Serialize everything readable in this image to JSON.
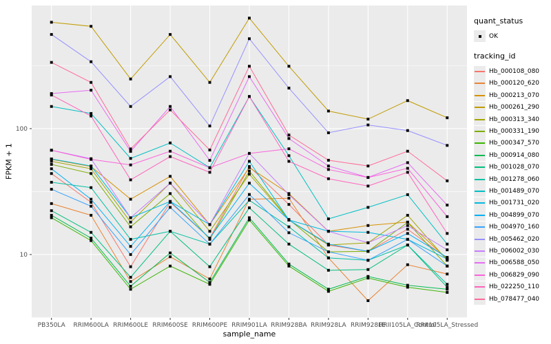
{
  "legend": {
    "quant_status_title": "quant_status",
    "quant_status_items": [
      "OK"
    ],
    "tracking_title": "tracking_id"
  },
  "chart_data": {
    "type": "line",
    "title": "",
    "xlabel": "sample_name",
    "ylabel": "FPKM + 1",
    "y_scale": "log10",
    "ylim": [
      3.14,
      951
    ],
    "y_ticks": [
      10,
      100
    ],
    "y_tick_labels": [
      "10",
      "100"
    ],
    "y_minor_breaks": [
      3.162,
      31.62,
      316.2
    ],
    "grid": true,
    "legend_position": "right",
    "point_shape": "square",
    "point_color": "#0a0a0a",
    "panel_background": "#ebebeb",
    "grid_color": "#ffffff",
    "axis_text_color": "#4d4d4d",
    "categories": [
      "PB350LA",
      "RRIM600LA",
      "RRIM600LE",
      "RRIM600SE",
      "RRIM600PE",
      "RRIM901LA",
      "RRIM928BA",
      "RRIM928LA",
      "RRIM928LE",
      "RRII105LA_Control",
      "RRII105LA_Stressed"
    ],
    "series": [
      {
        "name": "Hb_000108_080",
        "color": "#F8766D",
        "values": [
          44,
          26,
          8,
          26,
          13.5,
          50,
          25,
          11.9,
          10.6,
          15.9,
          9.3
        ]
      },
      {
        "name": "Hb_000120_620",
        "color": "#EA8331",
        "values": [
          25.4,
          20.5,
          6.1,
          9.6,
          6.4,
          27.5,
          28,
          9.4,
          4.3,
          8.3,
          7.0
        ]
      },
      {
        "name": "Hb_000213_070",
        "color": "#D89000",
        "values": [
          57,
          50,
          27.5,
          41.8,
          17.3,
          49,
          30.5,
          15.3,
          17,
          18.1,
          9.2
        ]
      },
      {
        "name": "Hb_000261_290",
        "color": "#C09B00",
        "values": [
          700,
          650,
          248,
          560,
          233,
          755,
          313,
          138,
          119,
          167,
          122
        ]
      },
      {
        "name": "Hb_000313_340",
        "color": "#A3A500",
        "values": [
          55,
          48,
          18.1,
          36.9,
          15.3,
          43.5,
          18.8,
          11.9,
          12.4,
          20.5,
          9.0
        ]
      },
      {
        "name": "Hb_000331_190",
        "color": "#7CAE00",
        "values": [
          52,
          44,
          16.6,
          30.5,
          13.2,
          46,
          19,
          10.5,
          10.6,
          18,
          8.1
        ]
      },
      {
        "name": "Hb_000347_570",
        "color": "#39B600",
        "values": [
          19.6,
          12.9,
          5.3,
          8.1,
          5.8,
          18.8,
          8.1,
          5.1,
          6.5,
          5.5,
          5.0
        ]
      },
      {
        "name": "Hb_000914_080",
        "color": "#00BB4E",
        "values": [
          20.5,
          13.5,
          5.6,
          10.3,
          6.0,
          19.6,
          8.4,
          5.3,
          6.7,
          5.7,
          5.3
        ]
      },
      {
        "name": "Hb_001028_070",
        "color": "#00BF7D",
        "values": [
          22.3,
          15.0,
          6.6,
          15.3,
          8.0,
          23.5,
          12.1,
          7.5,
          7.6,
          11.9,
          5.5
        ]
      },
      {
        "name": "Hb_001278_060",
        "color": "#00C1A3",
        "values": [
          37.5,
          34,
          13.2,
          15.3,
          12.1,
          27,
          16.6,
          9.4,
          9.0,
          11.9,
          5.8
        ]
      },
      {
        "name": "Hb_001489_070",
        "color": "#00BFC4",
        "values": [
          150,
          132,
          58,
          77,
          49,
          180,
          61,
          19.2,
          23.7,
          29.9,
          12.1
        ]
      },
      {
        "name": "Hb_001731_020",
        "color": "#00BADE",
        "values": [
          57.5,
          50.5,
          19.6,
          26.4,
          17.3,
          55,
          18.8,
          15.3,
          15.0,
          13.2,
          9.2
        ]
      },
      {
        "name": "Hb_004899_070",
        "color": "#00B0F6",
        "values": [
          48,
          27.5,
          11.6,
          26.4,
          13.5,
          36.9,
          18.8,
          12.1,
          10.6,
          14.7,
          9.5
        ]
      },
      {
        "name": "Hb_004970_160",
        "color": "#35A2FF",
        "values": [
          33,
          24.2,
          10.0,
          23.7,
          12.1,
          30,
          14.9,
          10.5,
          9.0,
          13.2,
          8.1
        ]
      },
      {
        "name": "Hb_005462_020",
        "color": "#9590FF",
        "values": [
          560,
          340,
          150,
          259,
          105,
          518,
          210,
          92.7,
          107,
          96.6,
          73.6
        ]
      },
      {
        "name": "Hb_006002_030",
        "color": "#C77CFF",
        "values": [
          67.4,
          57.7,
          19.6,
          36.9,
          17.3,
          63.6,
          29.9,
          15.3,
          12.4,
          17,
          10.9
        ]
      },
      {
        "name": "Hb_006588_050",
        "color": "#E76BF3",
        "values": [
          190,
          202,
          66,
          150,
          56,
          259,
          83.5,
          50.5,
          41,
          53.7,
          24.7
        ]
      },
      {
        "name": "Hb_006829_090",
        "color": "#FA62DB",
        "values": [
          67.4,
          57,
          51.5,
          66.2,
          48.9,
          63.6,
          69.2,
          47.4,
          40.9,
          48.4,
          20.0
        ]
      },
      {
        "name": "Hb_022250_110",
        "color": "#FF62BC",
        "values": [
          185,
          126,
          39.2,
          60,
          45,
          180,
          55,
          40,
          35,
          45,
          14.7
        ]
      },
      {
        "name": "Hb_078477_040",
        "color": "#FF6A98",
        "values": [
          336,
          233,
          69,
          141,
          67.7,
          313,
          89,
          56.1,
          50.5,
          66.2,
          38.5
        ]
      }
    ]
  }
}
